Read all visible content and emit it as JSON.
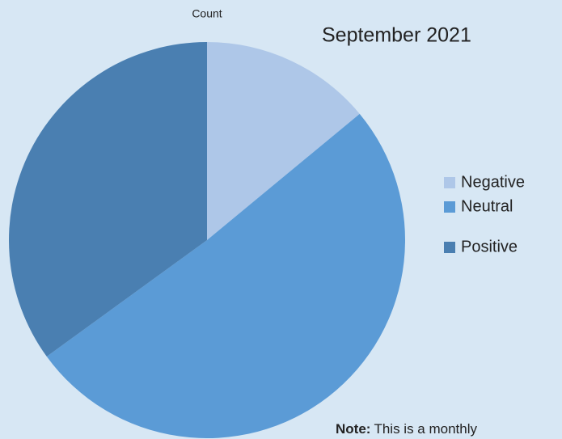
{
  "chart_data": {
    "type": "pie",
    "title": "Count",
    "subtitle": "September 2021",
    "categories": [
      "Negative",
      "Neutral",
      "Positive"
    ],
    "values": [
      14,
      51,
      35
    ],
    "colors": [
      "#aec7e8",
      "#5b9bd6",
      "#4a7fb1"
    ],
    "note": {
      "label": "Note:",
      "text": "This is a monthly"
    }
  }
}
